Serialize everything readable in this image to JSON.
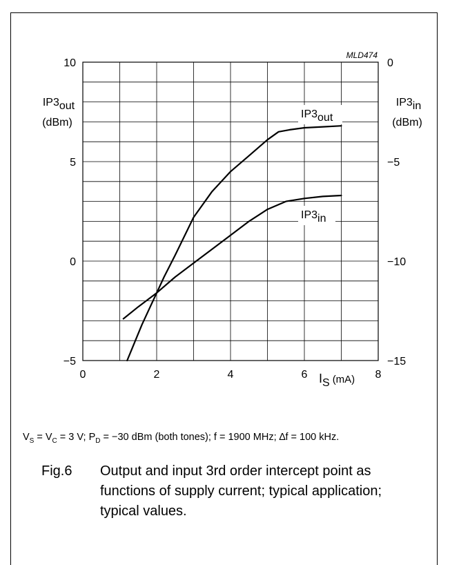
{
  "chart_data": {
    "type": "line",
    "code": "MLD474",
    "x_axis": {
      "label_main": "I",
      "label_sub": "S",
      "label_unit": "(mA)",
      "range": [
        0,
        8
      ],
      "ticks": [
        0,
        2,
        4,
        6,
        8
      ]
    },
    "y_left": {
      "label_main": "IP3",
      "label_sub": "out",
      "label_unit": "(dBm)",
      "range": [
        -5,
        10
      ],
      "ticks": [
        -5,
        0,
        5,
        10
      ]
    },
    "y_right": {
      "label_main": "IP3",
      "label_sub": "in",
      "label_unit": "(dBm)",
      "range": [
        -15,
        0
      ],
      "ticks": [
        -15,
        -10,
        -5,
        0
      ]
    },
    "grid": true,
    "series": [
      {
        "label_main": "IP3",
        "label_sub": "out",
        "axis": "left",
        "x": [
          1.2,
          1.4,
          1.6,
          1.8,
          2.0,
          2.2,
          2.5,
          3.0,
          3.5,
          4.0,
          4.5,
          5.0,
          5.3,
          5.6,
          6.0,
          6.5,
          7.0
        ],
        "y": [
          -5.0,
          -4.1,
          -3.2,
          -2.4,
          -1.6,
          -0.8,
          0.3,
          2.2,
          3.5,
          4.5,
          5.3,
          6.1,
          6.5,
          6.6,
          6.7,
          6.75,
          6.8
        ]
      },
      {
        "label_main": "IP3",
        "label_sub": "in",
        "axis": "right",
        "x": [
          1.1,
          1.5,
          2.0,
          2.5,
          3.0,
          3.5,
          4.0,
          4.5,
          5.0,
          5.5,
          6.0,
          6.5,
          7.0
        ],
        "y": [
          -12.9,
          -12.3,
          -11.6,
          -10.8,
          -10.1,
          -9.4,
          -8.7,
          -8.0,
          -7.4,
          -7.0,
          -6.85,
          -6.75,
          -6.7
        ]
      }
    ]
  },
  "conditions": {
    "vs_main": "V",
    "vs_sub": "S",
    "vc_eq": " = V",
    "vc_sub": "C",
    "pd_part": " = 3 V; P",
    "pd_sub": "D",
    "rest": " = −30 dBm (both tones); f = 1900 MHz; ∆f = 100 kHz."
  },
  "caption": {
    "fig": "Fig.6",
    "text": "Output and input 3rd order intercept point as functions of supply current; typical application; typical values."
  }
}
